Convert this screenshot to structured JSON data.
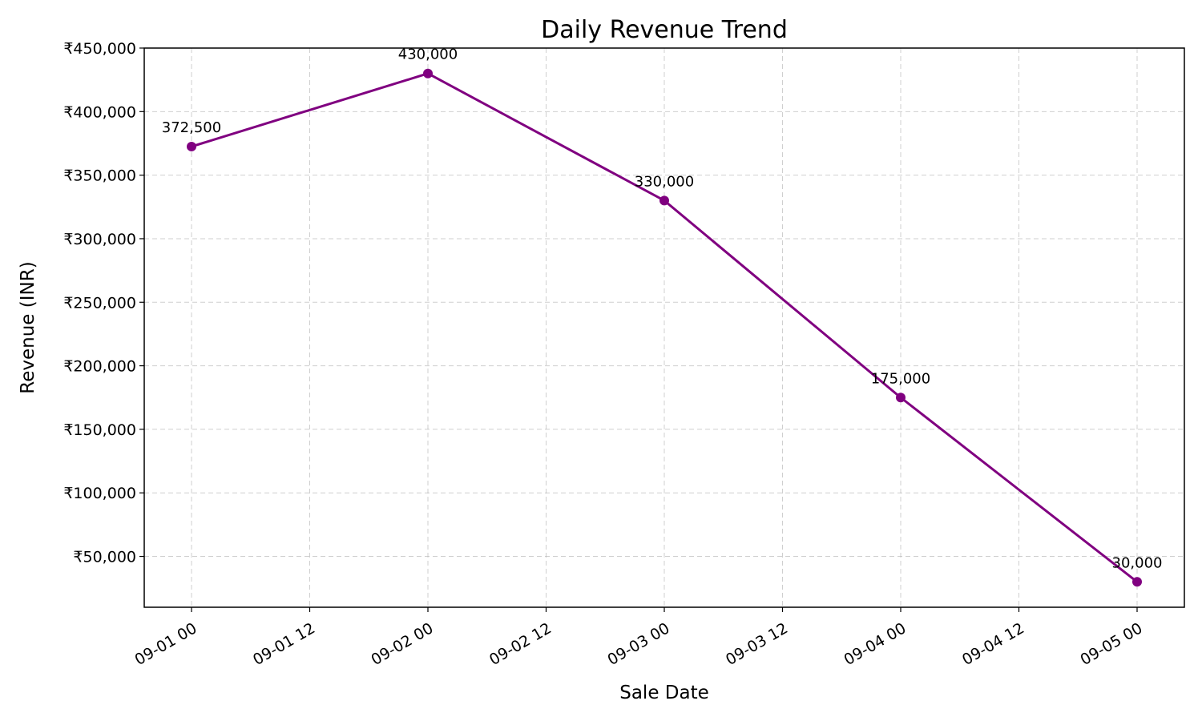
{
  "chart_data": {
    "type": "line",
    "title": "Daily Revenue Trend",
    "xlabel": "Sale Date",
    "ylabel": "Revenue (INR)",
    "x": [
      "2024-09-01",
      "2024-09-02",
      "2024-09-03",
      "2024-09-04",
      "2024-09-05"
    ],
    "x_hours": [
      0,
      24,
      48,
      72,
      96
    ],
    "x_ticks": [
      {
        "hour": 0,
        "label": "09-01 00"
      },
      {
        "hour": 12,
        "label": "09-01 12"
      },
      {
        "hour": 24,
        "label": "09-02 00"
      },
      {
        "hour": 36,
        "label": "09-02 12"
      },
      {
        "hour": 48,
        "label": "09-03 00"
      },
      {
        "hour": 60,
        "label": "09-03 12"
      },
      {
        "hour": 72,
        "label": "09-04 00"
      },
      {
        "hour": 84,
        "label": "09-04 12"
      },
      {
        "hour": 96,
        "label": "09-05 00"
      }
    ],
    "xlim_hours": [
      -4.8,
      100.8
    ],
    "y_ticks": [
      {
        "value": 50000,
        "label": "₹50,000"
      },
      {
        "value": 100000,
        "label": "₹100,000"
      },
      {
        "value": 150000,
        "label": "₹150,000"
      },
      {
        "value": 200000,
        "label": "₹200,000"
      },
      {
        "value": 250000,
        "label": "₹250,000"
      },
      {
        "value": 300000,
        "label": "₹300,000"
      },
      {
        "value": 350000,
        "label": "₹350,000"
      },
      {
        "value": 400000,
        "label": "₹400,000"
      },
      {
        "value": 450000,
        "label": "₹450,000"
      }
    ],
    "ylim": [
      10000,
      450000
    ],
    "series": [
      {
        "values": [
          372500,
          430000,
          330000,
          175000,
          30000
        ],
        "data_labels": [
          "372,500",
          "430,000",
          "330,000",
          "175,000",
          "30,000"
        ],
        "color": "#800080",
        "marker": "circle"
      }
    ],
    "grid": true
  }
}
